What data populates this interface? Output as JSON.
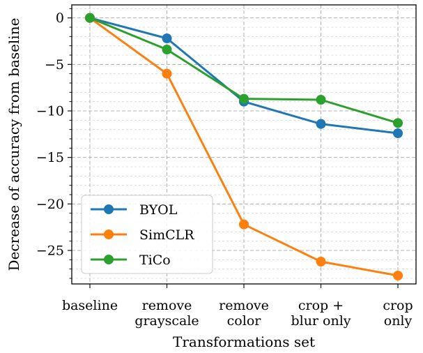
{
  "chart_data": {
    "type": "line",
    "title": "",
    "xlabel": "Transformations set",
    "ylabel": "Decrease of accuracy from baseline",
    "categories": [
      [
        "baseline"
      ],
      [
        "remove",
        "grayscale"
      ],
      [
        "remove",
        "color"
      ],
      [
        "crop +",
        "blur only"
      ],
      [
        "crop",
        "only"
      ]
    ],
    "ylim": [
      -28.6,
      1.4
    ],
    "yticks": [
      0,
      -5,
      -10,
      -15,
      -20,
      -25
    ],
    "ytick_labels": [
      "0",
      "−5",
      "−10",
      "−15",
      "−20",
      "−25"
    ],
    "grid": true,
    "legend_position": "lower-left",
    "series": [
      {
        "name": "BYOL",
        "color": "#1f77b4",
        "values": [
          0,
          -2.2,
          -9.0,
          -11.4,
          -12.4
        ]
      },
      {
        "name": "SimCLR",
        "color": "#ff7f0e",
        "values": [
          0,
          -6.0,
          -22.2,
          -26.2,
          -27.7
        ]
      },
      {
        "name": "TiCo",
        "color": "#2ca02c",
        "values": [
          0,
          -3.4,
          -8.7,
          -8.8,
          -11.3
        ]
      }
    ]
  }
}
